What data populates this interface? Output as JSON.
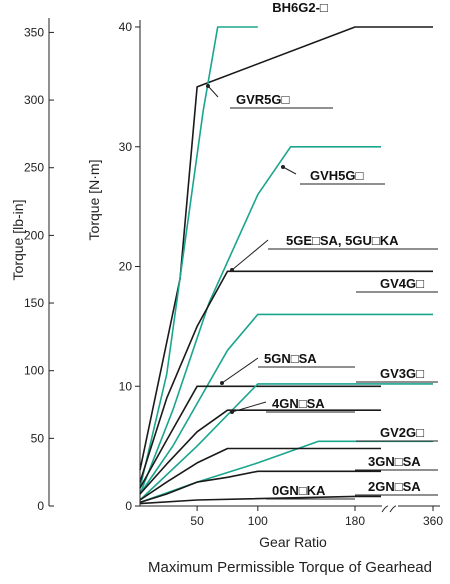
{
  "chart_data": {
    "type": "line",
    "caption": "Maximum Permissible Torque of Gearhead",
    "xlabel": "Gear Ratio",
    "ylabel_left": "Torque [lb-in]",
    "ylabel_inner": "Torque [N·m]",
    "x_ticks": [
      "50",
      "100",
      "180",
      "360"
    ],
    "x_scale": "linear from 3 to 180, then axis break, 180 to 360 compressed",
    "y_inner_ticks": [
      "0",
      "10",
      "20",
      "30",
      "40"
    ],
    "y_left_ticks": [
      "0",
      "50",
      "100",
      "150",
      "200",
      "250",
      "300",
      "350"
    ],
    "ylim_nm": [
      0,
      40
    ],
    "grid": false,
    "axis_break": "between 180 and 360",
    "colors": {
      "black_series": "#1a1a1a",
      "green_series": "#1aa58e"
    },
    "series": [
      {
        "name": "BH6G2-□",
        "color": "black",
        "x": [
          3,
          36,
          50,
          180,
          360
        ],
        "y": [
          3,
          19,
          35,
          40,
          40
        ]
      },
      {
        "name": "GVR5G□",
        "color": "green",
        "x": [
          3,
          25,
          55,
          67,
          100
        ],
        "y": [
          1.5,
          11,
          33,
          40,
          40
        ]
      },
      {
        "name": "GVH5G□",
        "color": "green",
        "x": [
          3,
          30,
          60,
          100,
          127,
          240
        ],
        "y": [
          1,
          8,
          17,
          26,
          30,
          30
        ]
      },
      {
        "name": "5GE□SA, 5GU□KA",
        "color": "black",
        "x": [
          3,
          25,
          50,
          75,
          180,
          360
        ],
        "y": [
          2,
          9,
          15,
          19.6,
          19.6,
          19.6
        ]
      },
      {
        "name": "GV4G□",
        "color": "green",
        "x": [
          3,
          30,
          75,
          100,
          180,
          360
        ],
        "y": [
          1,
          5,
          13,
          16,
          16,
          16
        ]
      },
      {
        "name": "5GN□SA",
        "color": "black",
        "x": [
          3,
          25,
          50,
          180,
          240
        ],
        "y": [
          1.5,
          5.5,
          10,
          10,
          10
        ]
      },
      {
        "name": "GV3G□",
        "color": "green",
        "x": [
          3,
          50,
          100,
          180,
          360
        ],
        "y": [
          0.5,
          5,
          10.2,
          10.2,
          10.2
        ]
      },
      {
        "name": "4GN□SA",
        "color": "black",
        "x": [
          3,
          25,
          50,
          75,
          180,
          240
        ],
        "y": [
          1,
          3.5,
          6.2,
          8,
          8,
          8
        ]
      },
      {
        "name": "GV2G□",
        "color": "green",
        "x": [
          3,
          50,
          100,
          150,
          180,
          360
        ],
        "y": [
          0.3,
          2,
          3.6,
          5.4,
          5.4,
          5.4
        ]
      },
      {
        "name": "3GN□SA",
        "color": "black",
        "x": [
          3,
          25,
          50,
          75,
          180,
          240
        ],
        "y": [
          0.5,
          2,
          3.6,
          4.8,
          4.8,
          4.8
        ]
      },
      {
        "name": "2GN□SA",
        "color": "black",
        "x": [
          3,
          25,
          50,
          75,
          100,
          180,
          240
        ],
        "y": [
          0.3,
          1,
          2,
          2.4,
          2.9,
          2.9,
          2.9
        ]
      },
      {
        "name": "0GN□KA",
        "color": "black",
        "x": [
          3,
          50,
          180,
          240
        ],
        "y": [
          0.2,
          0.5,
          0.8,
          0.8
        ]
      }
    ]
  }
}
